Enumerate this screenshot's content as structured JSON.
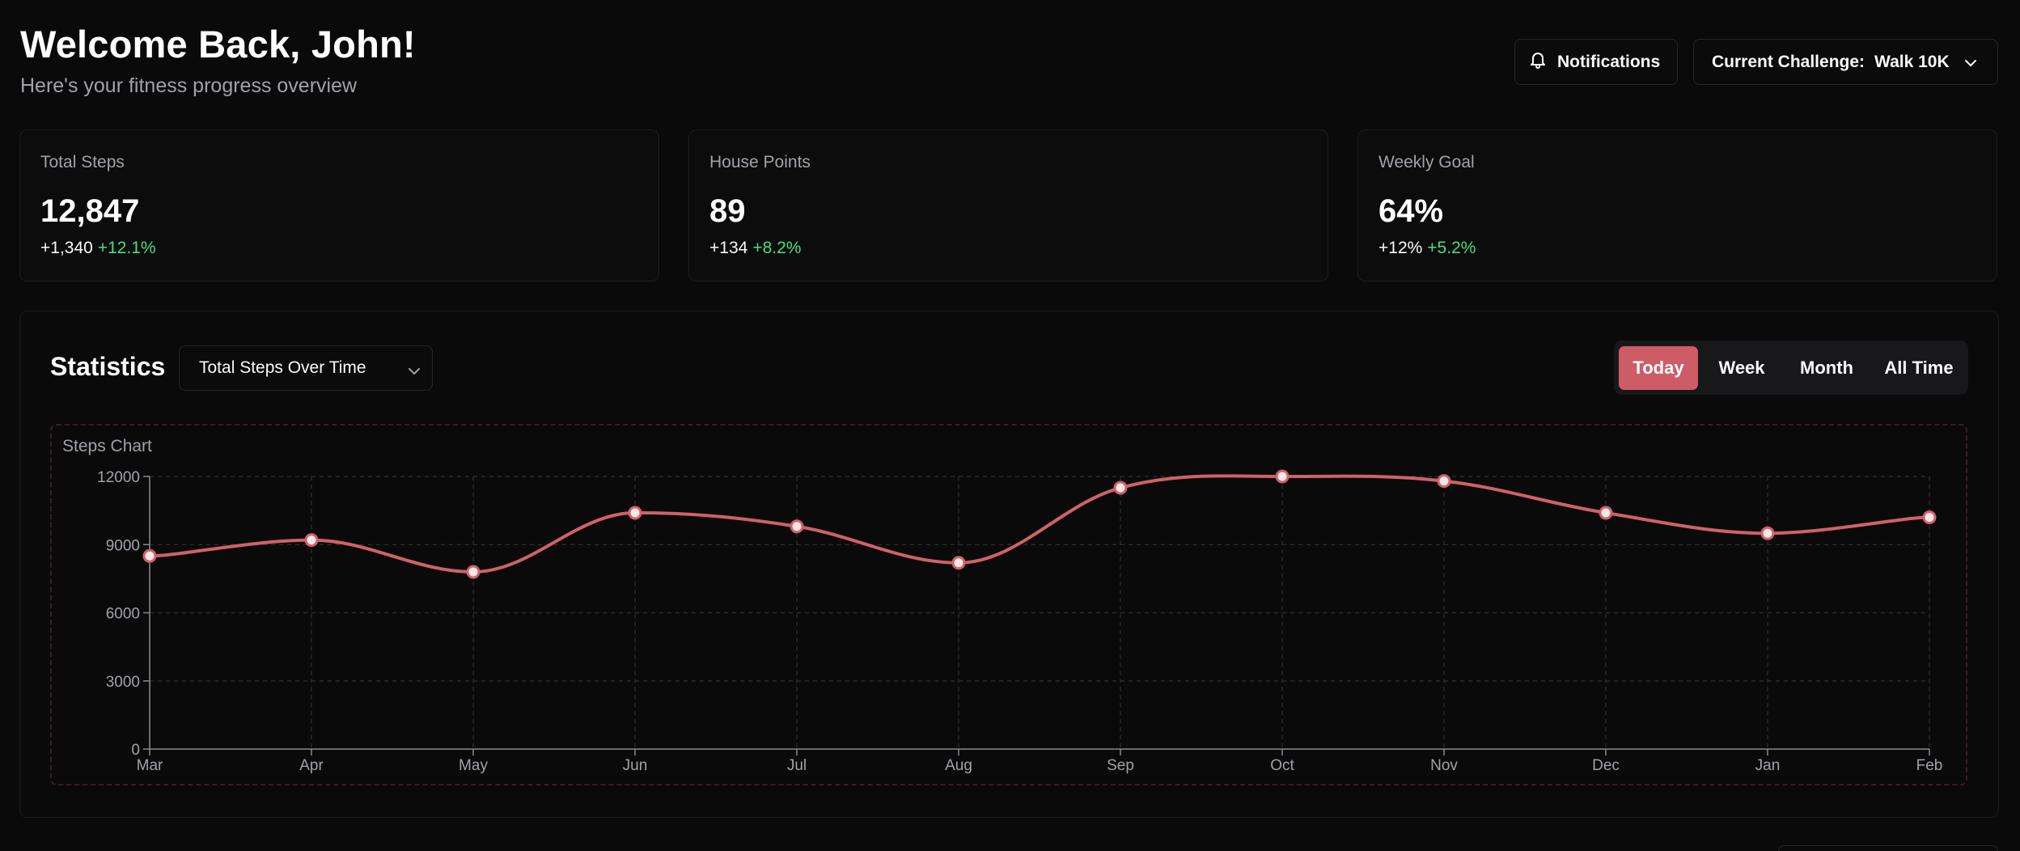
{
  "header": {
    "title": "Welcome Back, John!",
    "subtitle": "Here's your fitness progress overview",
    "notifications_label": "Notifications",
    "challenge_prefix": "Current Challenge:",
    "challenge_value": "Walk 10K"
  },
  "cards": [
    {
      "label": "Total Steps",
      "value": "12,847",
      "delta": "+1,340",
      "delta_pct": "+12.1%"
    },
    {
      "label": "House Points",
      "value": "89",
      "delta": "+134",
      "delta_pct": "+8.2%"
    },
    {
      "label": "Weekly Goal",
      "value": "64%",
      "delta": "+12%",
      "delta_pct": "+5.2%"
    }
  ],
  "statistics": {
    "title": "Statistics",
    "select_value": "Total Steps Over Time",
    "ranges": [
      "Today",
      "Week",
      "Month",
      "All Time"
    ],
    "active_range": "Today",
    "chart_title": "Steps Chart"
  },
  "colors": {
    "accent": "#cd5c67",
    "positive": "#4ade80",
    "line": "#d0616a"
  },
  "chart_data": {
    "type": "line",
    "title": "Steps Chart",
    "categories": [
      "Mar",
      "Apr",
      "May",
      "Jun",
      "Jul",
      "Aug",
      "Sep",
      "Oct",
      "Nov",
      "Dec",
      "Jan",
      "Feb"
    ],
    "values": [
      8500,
      9200,
      7800,
      10400,
      9800,
      8200,
      11500,
      12000,
      11800,
      10400,
      9500,
      10200
    ],
    "y_ticks": [
      0,
      3000,
      6000,
      9000,
      12000
    ],
    "ylim": [
      0,
      12000
    ],
    "grid": true,
    "xlabel": "",
    "ylabel": ""
  }
}
